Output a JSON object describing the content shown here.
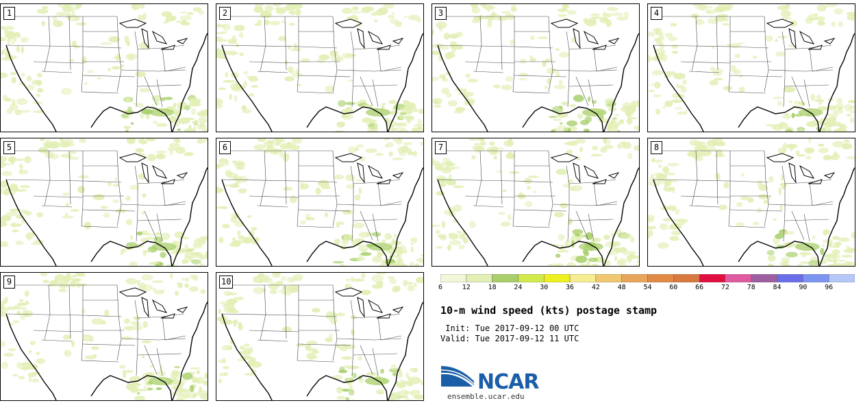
{
  "title": "10-m wind speed (kts) postage stamp",
  "init_line": " Init: Tue 2017-09-12 00 UTC",
  "valid_line": "Valid: Tue 2017-09-12 11 UTC",
  "members": [
    "1",
    "2",
    "3",
    "4",
    "5",
    "6",
    "7",
    "8",
    "9",
    "10"
  ],
  "colorbar": {
    "ticks": [
      "6",
      "12",
      "18",
      "24",
      "30",
      "36",
      "42",
      "48",
      "54",
      "60",
      "66",
      "72",
      "78",
      "84",
      "90",
      "96"
    ],
    "colors": [
      "#f2f7d9",
      "#e2efb5",
      "#a8cf6a",
      "#d2ea4b",
      "#eef01f",
      "#f6ec91",
      "#f0c872",
      "#e8a55c",
      "#e08a45",
      "#d8793f",
      "#e00f40",
      "#df5aa0",
      "#9d5fa0",
      "#6a6ee8",
      "#7c95f0",
      "#b6c8f7"
    ]
  },
  "logo": {
    "name": "NCAR",
    "url": "ensemble.ucar.edu"
  }
}
